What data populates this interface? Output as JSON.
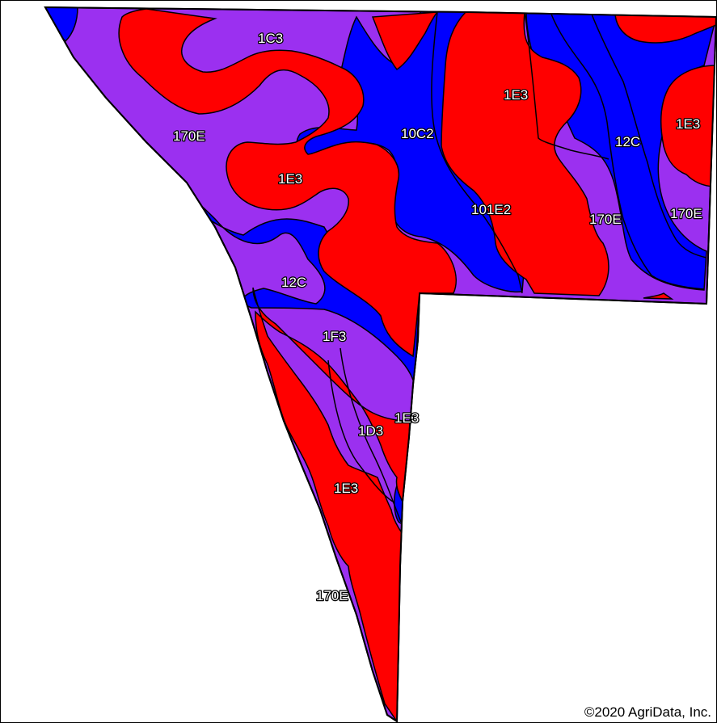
{
  "colors": {
    "red": "#ff0000",
    "blue": "#0000ff",
    "purple": "#9b30f0",
    "outline": "#000000",
    "background": "#ffffff"
  },
  "labels": {
    "c1c3": "1C3",
    "c170e_west": "170E",
    "c10c2": "10C2",
    "c1e3_top": "1E3",
    "c1e3_east": "1E3",
    "c12c_east": "12C",
    "c1e3_mid": "1E3",
    "c101e2": "101E2",
    "c170e_mid": "170E",
    "c170e_east": "170E",
    "c12c_mid": "12C",
    "c1f3": "1F3",
    "c1e3_low": "1E3",
    "c1d3": "1D3",
    "c1e3_south": "1E3",
    "c170e_south": "170E"
  },
  "copyright": "©2020 AgriData, Inc."
}
